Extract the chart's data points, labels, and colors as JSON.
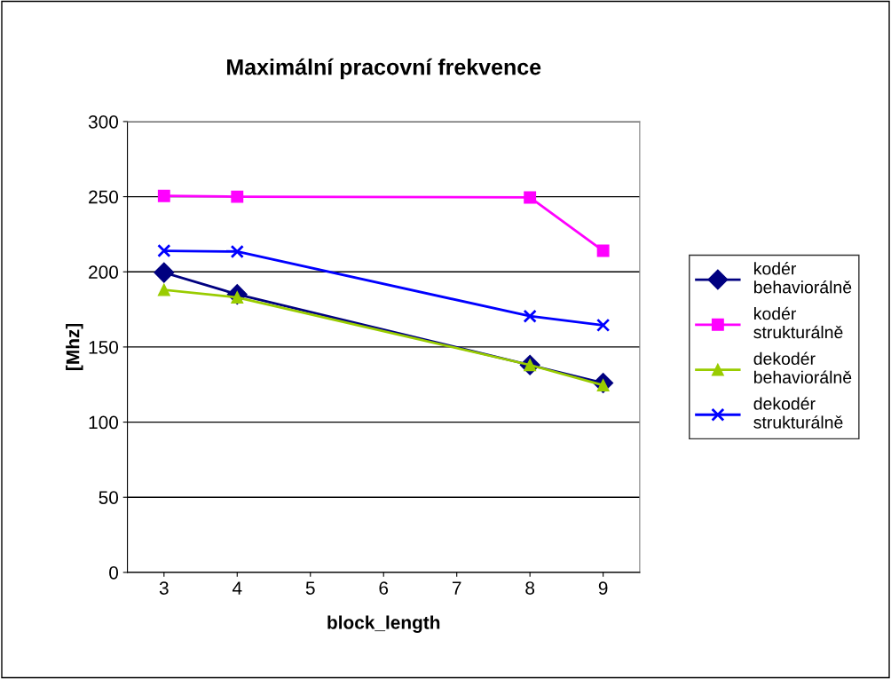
{
  "chart_data": {
    "type": "line",
    "title": "Maximální pracovní frekvence",
    "xlabel": "block_length",
    "ylabel": "[Mhz]",
    "categories": [
      "3",
      "4",
      "5",
      "6",
      "7",
      "8",
      "9"
    ],
    "ylim": [
      0,
      300
    ],
    "yticks": [
      0,
      50,
      100,
      150,
      200,
      250,
      300
    ],
    "grid": "y",
    "legend": "right",
    "series": [
      {
        "name": "kodér\nbehaviorálně",
        "color": "#000080",
        "marker": "diamond",
        "values": [
          199.5,
          185,
          null,
          null,
          null,
          138,
          126
        ]
      },
      {
        "name": "kodér\nstrukturálně",
        "color": "#ff00ff",
        "marker": "square",
        "values": [
          250.5,
          250,
          null,
          null,
          null,
          249.5,
          214
        ]
      },
      {
        "name": "dekodér\nbehaviorálně",
        "color": "#99cc00",
        "marker": "triangle",
        "values": [
          188,
          183,
          null,
          null,
          null,
          138,
          124.5
        ]
      },
      {
        "name": "dekodér\nstrukturálně",
        "color": "#0000ff",
        "marker": "cross",
        "values": [
          214,
          213.5,
          null,
          null,
          null,
          170.5,
          164.5
        ]
      }
    ]
  }
}
